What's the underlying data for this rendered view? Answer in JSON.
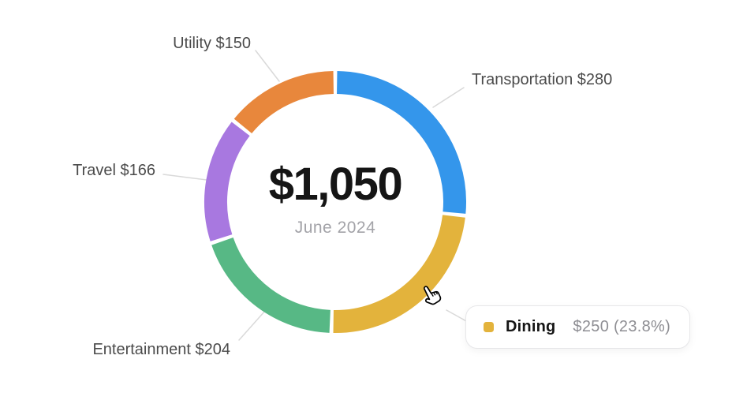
{
  "chart_data": {
    "type": "pie",
    "variant": "donut",
    "center_total": "$1,050",
    "center_subtitle": "June 2024",
    "total": 1050,
    "legend_position": "callout-labels",
    "segments": [
      {
        "label": "Transportation",
        "value": 280,
        "color": "#3496EB",
        "callout": "Transportation $280"
      },
      {
        "label": "Dining",
        "value": 250,
        "color": "#E3B33C"
      },
      {
        "label": "Entertainment",
        "value": 204,
        "color": "#57B885",
        "callout": "Entertainment $204"
      },
      {
        "label": "Travel",
        "value": 166,
        "color": "#A878E0",
        "callout": "Travel $166"
      },
      {
        "label": "Utility",
        "value": 150,
        "color": "#E8873C",
        "callout": "Utility $150"
      }
    ]
  },
  "tooltip": {
    "name": "Dining",
    "value_text": "$250 (23.8%)",
    "swatch_color": "#E3B33C"
  }
}
